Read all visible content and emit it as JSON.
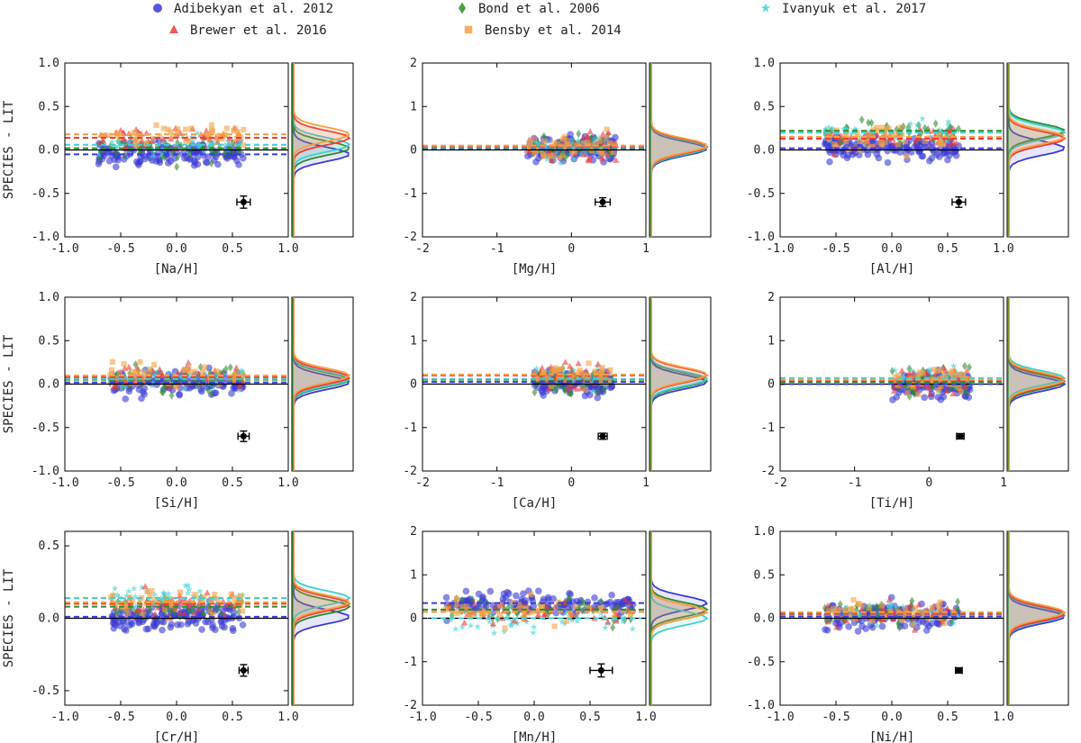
{
  "legend": [
    {
      "name": "Adibekyan et al. 2012",
      "color": "#3b3bd6",
      "marker": "circle"
    },
    {
      "name": "Bond et al. 2006",
      "color": "#2e8b2e",
      "marker": "diamond"
    },
    {
      "name": "Ivanyuk et al. 2017",
      "color": "#40d0d0",
      "marker": "star"
    },
    {
      "name": "Brewer et al. 2016",
      "color": "#ee3b3b",
      "marker": "triangle"
    },
    {
      "name": "Bensby et al. 2014",
      "color": "#f5a142",
      "marker": "square"
    }
  ],
  "ylabel": "SPECIES - LIT",
  "chart_data": [
    {
      "type": "scatter",
      "xlabel": "[Na/H]",
      "xlim": [
        -1,
        1
      ],
      "ylim": [
        -1,
        1
      ],
      "xticks": [
        "-1.0",
        "-0.5",
        "0.0",
        "0.5",
        "1.0"
      ],
      "yticks": [
        "-1.0",
        "-0.5",
        "0.0",
        "0.5",
        "1.0"
      ],
      "offsets": {
        "Adibekyan et al. 2012": -0.05,
        "Bond et al. 2006": 0.02,
        "Ivanyuk et al. 2017": 0.06,
        "Brewer et al. 2016": 0.14,
        "Bensby et al. 2014": 0.18
      },
      "errorbar": {
        "x": 0.6,
        "y": -0.6,
        "xerr": 0.06,
        "yerr": 0.07
      },
      "cloud": {
        "xmin": -0.7,
        "xmax": 0.6
      }
    },
    {
      "type": "scatter",
      "xlabel": "[Mg/H]",
      "xlim": [
        -2,
        1
      ],
      "ylim": [
        -2,
        2
      ],
      "xticks": [
        "-2",
        "-1",
        "0",
        "1"
      ],
      "yticks": [
        "-2",
        "-1",
        "0",
        "1",
        "2"
      ],
      "offsets": {
        "Adibekyan et al. 2012": 0.03,
        "Bond et al. 2006": 0.05,
        "Ivanyuk et al. 2017": 0.06,
        "Brewer et al. 2016": 0.08,
        "Bensby et al. 2014": 0.1
      },
      "errorbar": {
        "x": 0.42,
        "y": -1.2,
        "xerr": 0.1,
        "yerr": 0.1
      },
      "cloud": {
        "xmin": -0.6,
        "xmax": 0.6
      }
    },
    {
      "type": "scatter",
      "xlabel": "[Al/H]",
      "xlim": [
        -1,
        1
      ],
      "ylim": [
        -1,
        1
      ],
      "xticks": [
        "-1.0",
        "-0.5",
        "0.0",
        "0.5",
        "1.0"
      ],
      "yticks": [
        "-1.0",
        "-0.5",
        "0.0",
        "0.5",
        "1.0"
      ],
      "offsets": {
        "Adibekyan et al. 2012": 0.02,
        "Bond et al. 2006": 0.22,
        "Ivanyuk et al. 2017": 0.2,
        "Brewer et al. 2016": 0.13,
        "Bensby et al. 2014": 0.15
      },
      "errorbar": {
        "x": 0.6,
        "y": -0.6,
        "xerr": 0.06,
        "yerr": 0.06
      },
      "cloud": {
        "xmin": -0.6,
        "xmax": 0.6
      }
    },
    {
      "type": "scatter",
      "xlabel": "[Si/H]",
      "xlim": [
        -1,
        1
      ],
      "ylim": [
        -1,
        1
      ],
      "xticks": [
        "-1.0",
        "-0.5",
        "0.0",
        "0.5",
        "1.0"
      ],
      "yticks": [
        "-1.0",
        "-0.5",
        "0.0",
        "0.5",
        "1.0"
      ],
      "offsets": {
        "Adibekyan et al. 2012": 0.02,
        "Bond et al. 2006": 0.05,
        "Ivanyuk et al. 2017": 0.06,
        "Brewer et al. 2016": 0.08,
        "Bensby et al. 2014": 0.1
      },
      "errorbar": {
        "x": 0.6,
        "y": -0.6,
        "xerr": 0.05,
        "yerr": 0.06
      },
      "cloud": {
        "xmin": -0.6,
        "xmax": 0.6
      }
    },
    {
      "type": "scatter",
      "xlabel": "[Ca/H]",
      "xlim": [
        -2,
        1
      ],
      "ylim": [
        -2,
        2
      ],
      "xticks": [
        "-2",
        "-1",
        "0",
        "1"
      ],
      "yticks": [
        "-2",
        "-1",
        "0",
        "1",
        "2"
      ],
      "offsets": {
        "Adibekyan et al. 2012": 0.05,
        "Bond et al. 2006": 0.1,
        "Ivanyuk et al. 2017": 0.12,
        "Brewer et al. 2016": 0.2,
        "Bensby et al. 2014": 0.22
      },
      "errorbar": {
        "x": 0.42,
        "y": -1.2,
        "xerr": 0.06,
        "yerr": 0.07
      },
      "cloud": {
        "xmin": -0.5,
        "xmax": 0.55
      }
    },
    {
      "type": "scatter",
      "xlabel": "[Ti/H]",
      "xlim": [
        -2,
        1
      ],
      "ylim": [
        -2,
        2
      ],
      "xticks": [
        "-2",
        "-1",
        "0",
        "1"
      ],
      "yticks": [
        "-2",
        "-1",
        "0",
        "1",
        "2"
      ],
      "offsets": {
        "Adibekyan et al. 2012": 0.0,
        "Bond et al. 2006": 0.05,
        "Ivanyuk et al. 2017": 0.14,
        "Brewer et al. 2016": 0.08,
        "Bensby et al. 2014": 0.1
      },
      "errorbar": {
        "x": 0.42,
        "y": -1.2,
        "xerr": 0.05,
        "yerr": 0.06
      },
      "cloud": {
        "xmin": -0.5,
        "xmax": 0.55
      }
    },
    {
      "type": "scatter",
      "xlabel": "[Cr/H]",
      "xlim": [
        -1,
        1
      ],
      "ylim": [
        -0.6,
        0.6
      ],
      "xticks": [
        "-1.0",
        "-0.5",
        "0.0",
        "0.5",
        "1.0"
      ],
      "yticks": [
        "-0.5",
        "0.0",
        "0.5"
      ],
      "offsets": {
        "Adibekyan et al. 2012": 0.01,
        "Bond et al. 2006": 0.08,
        "Ivanyuk et al. 2017": 0.14,
        "Brewer et al. 2016": 0.1,
        "Bensby et al. 2014": 0.11
      },
      "errorbar": {
        "x": 0.6,
        "y": -0.36,
        "xerr": 0.04,
        "yerr": 0.04
      },
      "cloud": {
        "xmin": -0.6,
        "xmax": 0.6
      }
    },
    {
      "type": "scatter",
      "xlabel": "[Mn/H]",
      "xlim": [
        -1,
        1
      ],
      "ylim": [
        -2,
        2
      ],
      "xticks": [
        "-1.0",
        "-0.5",
        "0.0",
        "0.5",
        "1.0"
      ],
      "yticks": [
        "-2",
        "-1",
        "0",
        "1",
        "2"
      ],
      "offsets": {
        "Adibekyan et al. 2012": 0.35,
        "Bond et al. 2006": 0.2,
        "Ivanyuk et al. 2017": 0.0,
        "Brewer et al. 2016": 0.15,
        "Bensby et al. 2014": 0.15
      },
      "errorbar": {
        "x": 0.6,
        "y": -1.2,
        "xerr": 0.1,
        "yerr": 0.15
      },
      "cloud": {
        "xmin": -0.8,
        "xmax": 0.9
      }
    },
    {
      "type": "scatter",
      "xlabel": "[Ni/H]",
      "xlim": [
        -1,
        1
      ],
      "ylim": [
        -1,
        1
      ],
      "xticks": [
        "-1.0",
        "-0.5",
        "0.0",
        "0.5",
        "1.0"
      ],
      "yticks": [
        "-1.0",
        "-0.5",
        "0.0",
        "0.5",
        "1.0"
      ],
      "offsets": {
        "Adibekyan et al. 2012": 0.02,
        "Bond et al. 2006": 0.06,
        "Ivanyuk et al. 2017": 0.04,
        "Brewer et al. 2016": 0.05,
        "Bensby et al. 2014": 0.07
      },
      "errorbar": {
        "x": 0.6,
        "y": -0.6,
        "xerr": 0.03,
        "yerr": 0.03
      },
      "cloud": {
        "xmin": -0.6,
        "xmax": 0.6
      }
    }
  ]
}
